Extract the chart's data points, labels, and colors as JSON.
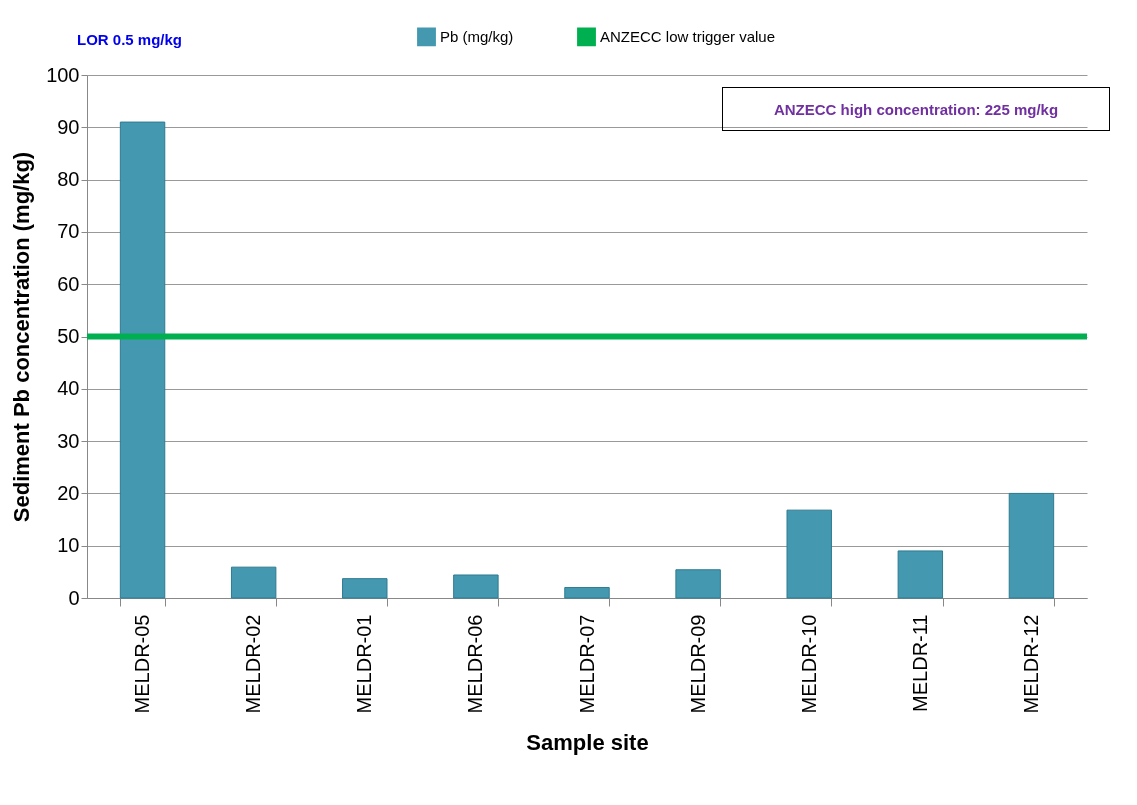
{
  "chart_data": {
    "type": "bar",
    "xlabel": "Sample site",
    "ylabel": "Sediment Pb concentration (mg/kg)",
    "categories": [
      "MELDR-05",
      "MELDR-02",
      "MELDR-01",
      "MELDR-06",
      "MELDR-07",
      "MELDR-09",
      "MELDR-10",
      "MELDR-11",
      "MELDR-12"
    ],
    "series": [
      {
        "name": "Pb (mg/kg)",
        "color": "#4499b0",
        "values": [
          91,
          5.9,
          3.7,
          4.4,
          2.0,
          5.4,
          16.8,
          9.0,
          20
        ]
      }
    ],
    "ylim": [
      0,
      100
    ],
    "yticks": [
      0,
      10,
      20,
      30,
      40,
      50,
      60,
      70,
      80,
      90,
      100
    ],
    "grid": "y",
    "legend": "top",
    "ref_lines": [
      {
        "axis": "y",
        "value": 50,
        "label": "ANZECC low trigger value",
        "color": "#00b050"
      }
    ],
    "annotations": [
      "LOR 0.5 mg/kg",
      "ANZECC high concentration: 225 mg/kg"
    ]
  }
}
